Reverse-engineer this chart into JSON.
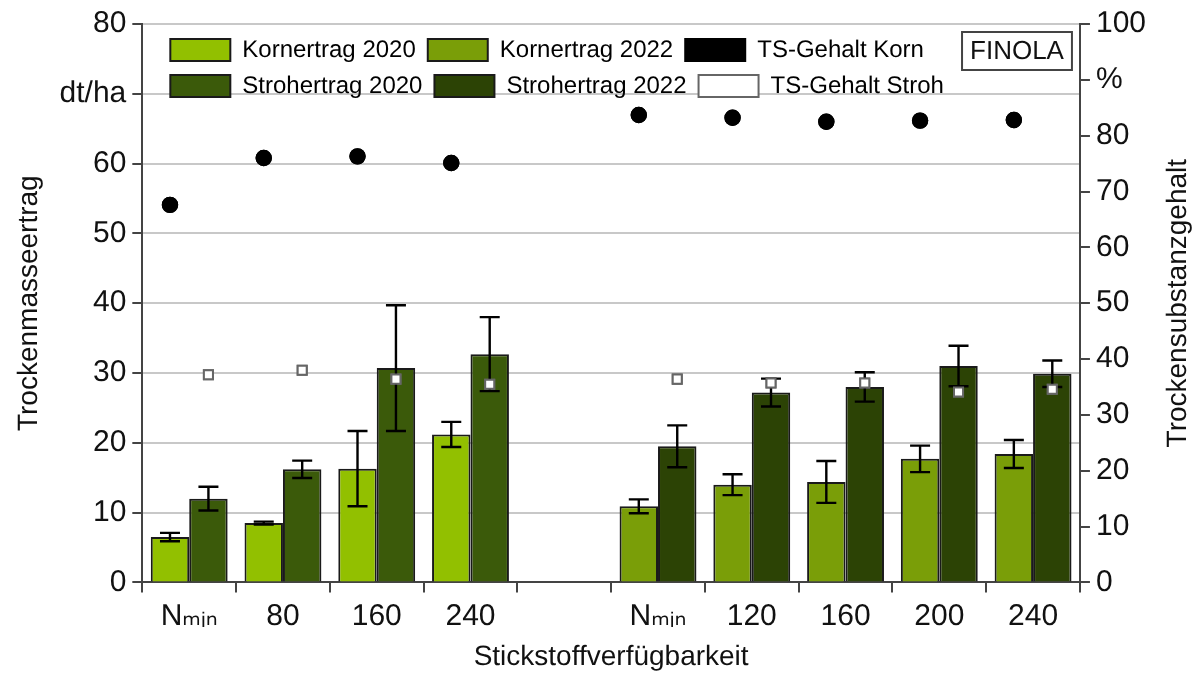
{
  "chart_data": {
    "type": "bar",
    "categories": [
      "Nₘᵢₙ",
      "80",
      "160",
      "240",
      null,
      "Nₘᵢₙ",
      "120",
      "160",
      "200",
      "240"
    ],
    "series": [
      {
        "name": "Kornertrag 2020",
        "color": "#92c000",
        "values": [
          6.5,
          8.5,
          16.3,
          21.2,
          null,
          null,
          null,
          null,
          null,
          null
        ],
        "errors": [
          0.6,
          0.2,
          5.4,
          1.8,
          null,
          null,
          null,
          null,
          null,
          null
        ]
      },
      {
        "name": "Kornertrag 2022",
        "color": "#7a9e08",
        "values": [
          null,
          null,
          null,
          null,
          null,
          10.9,
          14.0,
          14.4,
          17.7,
          18.4
        ],
        "errors": [
          null,
          null,
          null,
          null,
          null,
          1.0,
          1.5,
          3.0,
          1.9,
          2.0
        ]
      },
      {
        "name": "TS-Gehalt Korn",
        "type": "scatter",
        "axis": "y2",
        "marker": "circle",
        "color": "#000000",
        "values": [
          67.6,
          76.0,
          76.3,
          75.1,
          null,
          83.7,
          83.2,
          82.5,
          82.7,
          82.8
        ]
      },
      {
        "name": "Strohertrag 2020",
        "color": "#3b5a0a",
        "values": [
          12.0,
          16.2,
          30.7,
          32.7,
          null,
          null,
          null,
          null,
          null,
          null
        ],
        "errors": [
          1.7,
          1.25,
          9.0,
          5.3,
          null,
          null,
          null,
          null,
          null,
          null
        ]
      },
      {
        "name": "Strohertrag 2022",
        "color": "#2c4305",
        "values": [
          null,
          null,
          null,
          null,
          null,
          19.5,
          27.2,
          28.0,
          31.0,
          29.9
        ],
        "errors": [
          null,
          null,
          null,
          null,
          null,
          3.0,
          2.0,
          2.1,
          2.9,
          1.9
        ]
      },
      {
        "name": "TS-Gehalt Stroh",
        "type": "scatter",
        "axis": "y2",
        "marker": "square",
        "color": "#ffffff",
        "values": [
          37.2,
          38.0,
          36.4,
          35.5,
          null,
          36.4,
          35.7,
          35.7,
          34.1,
          34.6
        ]
      }
    ],
    "xlabel": "Stickstoffverfügbarkeit",
    "ylabel": "Trockenmasseertrag",
    "y2label": "Trockensubstanzgehalt",
    "ylim": [
      0,
      80
    ],
    "yticks": [
      0,
      10,
      20,
      30,
      40,
      50,
      60,
      {
        "value": 70,
        "label": "dt/ha"
      },
      80
    ],
    "y2lim": [
      0,
      100
    ],
    "y2ticks": [
      0,
      10,
      20,
      30,
      40,
      50,
      60,
      70,
      80,
      {
        "value": 90,
        "label": "%"
      },
      100
    ],
    "annotations": [
      "FINOLA"
    ],
    "grid": "y",
    "legend": "top left"
  }
}
